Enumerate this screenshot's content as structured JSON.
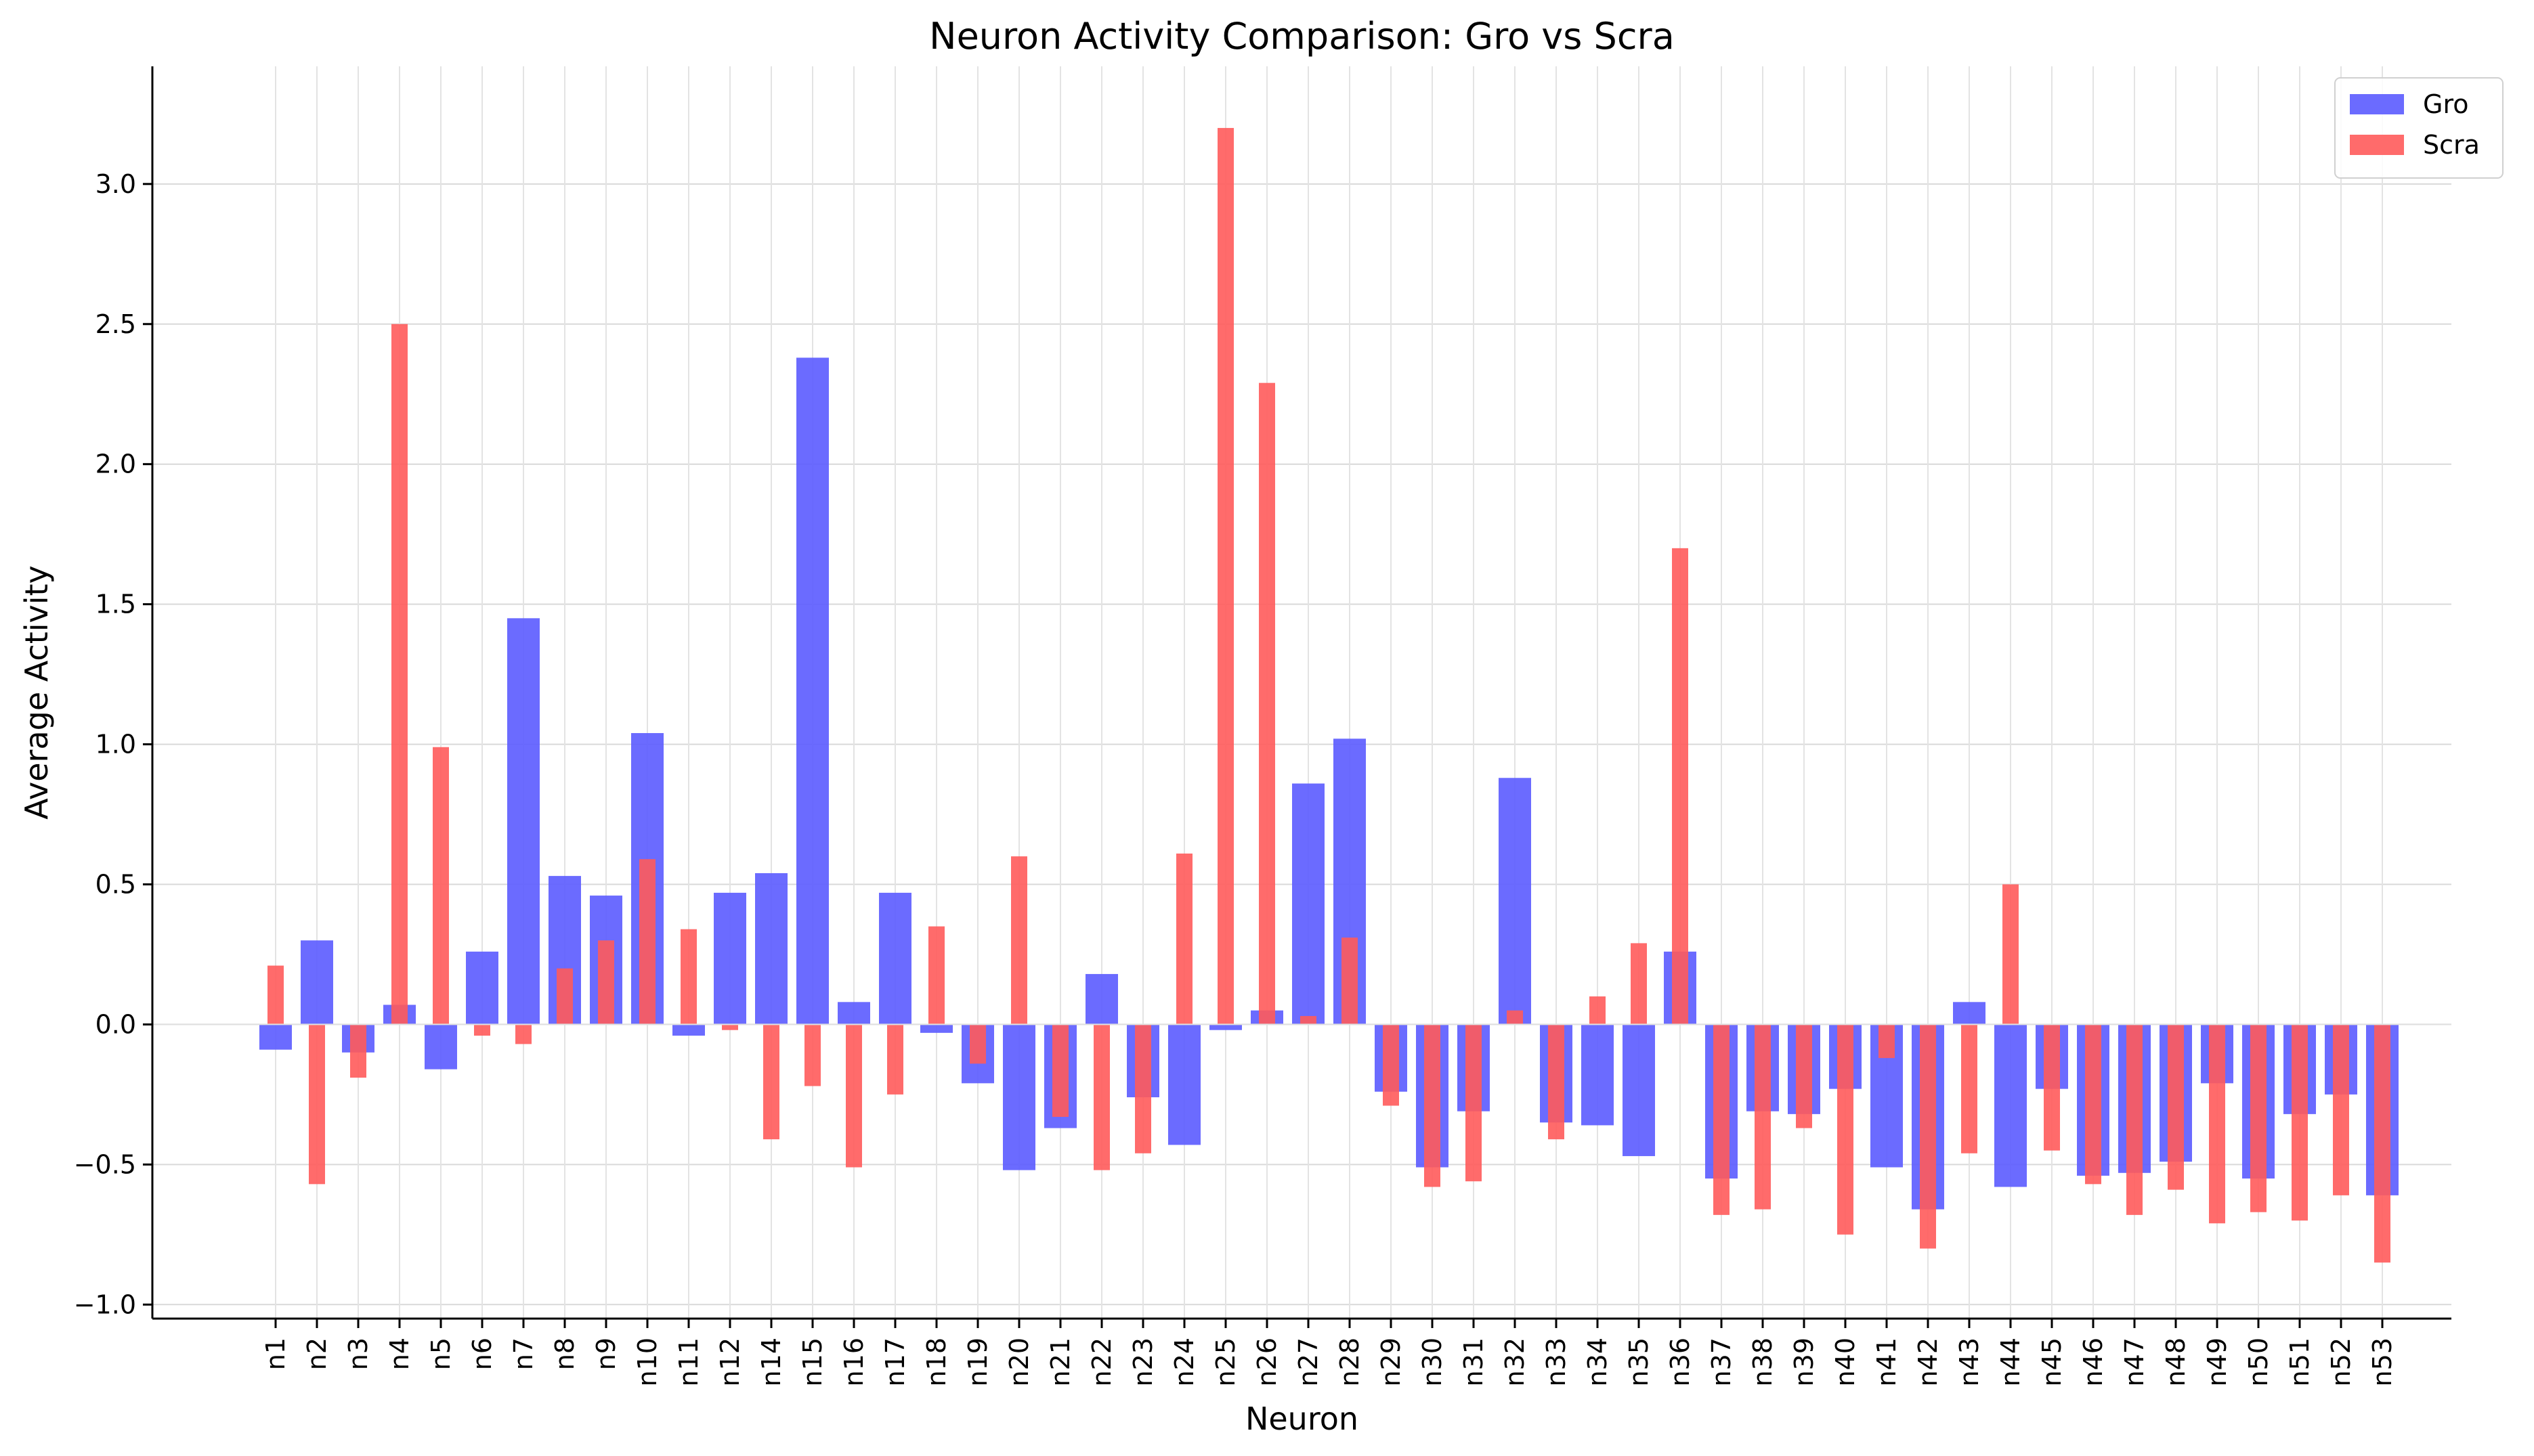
{
  "chart_data": {
    "type": "bar",
    "title": "Neuron Activity Comparison: Gro vs Scra",
    "xlabel": "Neuron",
    "ylabel": "Average Activity",
    "ylim": [
      -1.05,
      3.42
    ],
    "yticks": [
      -1.0,
      -0.5,
      0.0,
      0.5,
      1.0,
      1.5,
      2.0,
      2.5,
      3.0
    ],
    "ytick_labels": [
      "−1.0",
      "−0.5",
      "0.0",
      "0.5",
      "1.0",
      "1.5",
      "2.0",
      "2.5",
      "3.0"
    ],
    "grid": true,
    "legend_position": "top-right",
    "categories": [
      "n1",
      "n2",
      "n3",
      "n4",
      "n5",
      "n6",
      "n7",
      "n8",
      "n9",
      "n10",
      "n11",
      "n12",
      "n14",
      "n15",
      "n16",
      "n17",
      "n18",
      "n19",
      "n20",
      "n21",
      "n22",
      "n23",
      "n24",
      "n25",
      "n26",
      "n27",
      "n28",
      "n29",
      "n30",
      "n31",
      "n32",
      "n33",
      "n34",
      "n35",
      "n36",
      "n37",
      "n38",
      "n39",
      "n40",
      "n41",
      "n42",
      "n43",
      "n44",
      "n45",
      "n46",
      "n47",
      "n48",
      "n49",
      "n50",
      "n51",
      "n52",
      "n53"
    ],
    "series": [
      {
        "name": "Gro",
        "color": "#5b5bff",
        "values": [
          -0.09,
          0.3,
          -0.1,
          0.07,
          -0.16,
          0.26,
          1.45,
          0.53,
          0.46,
          1.04,
          -0.04,
          0.47,
          0.54,
          2.38,
          0.08,
          0.47,
          -0.03,
          -0.21,
          -0.52,
          -0.37,
          0.18,
          -0.26,
          -0.43,
          -0.02,
          0.05,
          0.86,
          1.02,
          -0.24,
          -0.51,
          -0.31,
          0.88,
          -0.35,
          -0.36,
          -0.47,
          0.26,
          -0.55,
          -0.31,
          -0.32,
          -0.23,
          -0.51,
          -0.66,
          0.08,
          -0.58,
          -0.23,
          -0.54,
          -0.53,
          -0.49,
          -0.21,
          -0.55,
          -0.32,
          -0.25,
          -0.61
        ]
      },
      {
        "name": "Scra",
        "color": "#ff5b5b",
        "values": [
          0.21,
          -0.57,
          -0.19,
          2.5,
          0.99,
          -0.04,
          -0.07,
          0.2,
          0.3,
          0.59,
          0.34,
          -0.02,
          -0.41,
          -0.22,
          -0.51,
          -0.25,
          0.35,
          -0.14,
          0.6,
          -0.33,
          -0.52,
          -0.46,
          0.61,
          3.2,
          2.29,
          0.03,
          0.31,
          -0.29,
          -0.58,
          -0.56,
          0.05,
          -0.41,
          0.1,
          0.29,
          1.7,
          -0.68,
          -0.66,
          -0.37,
          -0.75,
          -0.12,
          -0.8,
          -0.46,
          0.5,
          -0.45,
          -0.57,
          -0.68,
          -0.59,
          -0.71,
          -0.67,
          -0.7,
          -0.61,
          -0.85
        ]
      }
    ]
  }
}
